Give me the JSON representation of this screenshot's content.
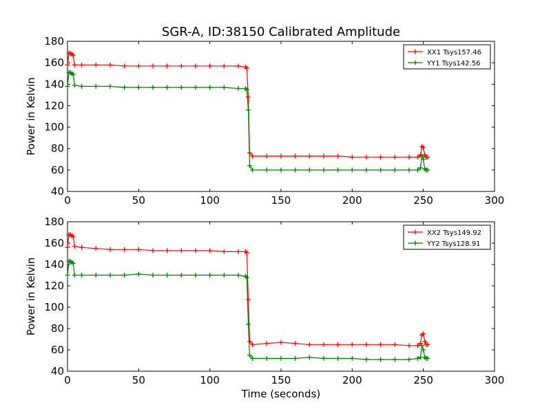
{
  "chart_data": [
    {
      "type": "line",
      "title": "SGR-A, ID:38150 Calibrated Amplitude",
      "xlabel": "",
      "ylabel": "Power in Kelvin",
      "xlim": [
        0,
        300
      ],
      "ylim": [
        40,
        180
      ],
      "xticks": [
        0,
        50,
        100,
        150,
        200,
        250,
        300
      ],
      "yticks": [
        40,
        60,
        80,
        100,
        120,
        140,
        160,
        180
      ],
      "legend_position": "top-right",
      "series": [
        {
          "name": "XX1 Tsys157.46",
          "color": "#ff0000",
          "marker": "plus",
          "x": [
            0,
            1,
            2,
            3,
            4,
            5,
            10,
            20,
            30,
            40,
            50,
            60,
            70,
            80,
            90,
            100,
            110,
            120,
            125,
            126,
            127,
            128,
            130,
            140,
            150,
            160,
            170,
            180,
            190,
            200,
            210,
            220,
            230,
            240,
            246,
            248,
            249,
            250,
            251,
            252,
            253
          ],
          "y": [
            158,
            169,
            169,
            168,
            167,
            158,
            158,
            158,
            158,
            157,
            157,
            157,
            157,
            157,
            157,
            157,
            157,
            157,
            156,
            155,
            128,
            76,
            73,
            73,
            73,
            73,
            73,
            73,
            73,
            72,
            72,
            72,
            72,
            72,
            72,
            74,
            82,
            81,
            74,
            72,
            72
          ]
        },
        {
          "name": "YY1 Tsys142.56",
          "color": "#008000",
          "marker": "plus",
          "x": [
            0,
            1,
            2,
            3,
            4,
            5,
            10,
            20,
            30,
            40,
            50,
            60,
            70,
            80,
            90,
            100,
            110,
            120,
            125,
            126,
            127,
            128,
            130,
            140,
            150,
            160,
            170,
            180,
            190,
            200,
            210,
            220,
            230,
            240,
            246,
            248,
            249,
            250,
            251,
            252,
            253
          ],
          "y": [
            138,
            151,
            151,
            150,
            149,
            139,
            138,
            138,
            138,
            137,
            137,
            137,
            137,
            137,
            137,
            137,
            137,
            136,
            136,
            135,
            116,
            64,
            60,
            60,
            60,
            60,
            60,
            60,
            60,
            60,
            60,
            60,
            60,
            60,
            60,
            62,
            73,
            70,
            61,
            60,
            60
          ]
        }
      ]
    },
    {
      "type": "line",
      "title": "",
      "xlabel": "Time (seconds)",
      "ylabel": "Power in Kelvin",
      "xlim": [
        0,
        300
      ],
      "ylim": [
        40,
        180
      ],
      "xticks": [
        0,
        50,
        100,
        150,
        200,
        250,
        300
      ],
      "yticks": [
        40,
        60,
        80,
        100,
        120,
        140,
        160,
        180
      ],
      "legend_position": "top-right",
      "series": [
        {
          "name": "XX2 Tsys149.92",
          "color": "#ff0000",
          "marker": "plus",
          "x": [
            0,
            1,
            2,
            3,
            4,
            5,
            10,
            20,
            30,
            40,
            50,
            60,
            70,
            80,
            90,
            100,
            110,
            120,
            125,
            126,
            127,
            128,
            130,
            140,
            150,
            160,
            170,
            180,
            190,
            200,
            210,
            220,
            230,
            240,
            246,
            248,
            249,
            250,
            251,
            252,
            253
          ],
          "y": [
            156,
            168,
            168,
            167,
            166,
            157,
            156,
            155,
            154,
            154,
            154,
            153,
            153,
            153,
            153,
            153,
            152,
            152,
            152,
            151,
            107,
            68,
            65,
            66,
            67,
            66,
            65,
            65,
            65,
            65,
            65,
            65,
            65,
            64,
            64,
            66,
            74,
            75,
            68,
            65,
            65
          ]
        },
        {
          "name": "YY2 Tsys128.91",
          "color": "#008000",
          "marker": "plus",
          "x": [
            0,
            1,
            2,
            3,
            4,
            5,
            10,
            20,
            30,
            40,
            50,
            60,
            70,
            80,
            90,
            100,
            110,
            120,
            125,
            126,
            127,
            128,
            130,
            140,
            150,
            160,
            170,
            180,
            190,
            200,
            210,
            220,
            230,
            240,
            246,
            248,
            249,
            250,
            251,
            252,
            253
          ],
          "y": [
            130,
            143,
            143,
            142,
            141,
            130,
            130,
            130,
            130,
            130,
            131,
            130,
            130,
            130,
            130,
            130,
            130,
            130,
            129,
            128,
            84,
            55,
            52,
            52,
            52,
            52,
            53,
            52,
            52,
            52,
            51,
            51,
            51,
            51,
            52,
            53,
            64,
            60,
            53,
            52,
            52
          ]
        }
      ]
    }
  ]
}
